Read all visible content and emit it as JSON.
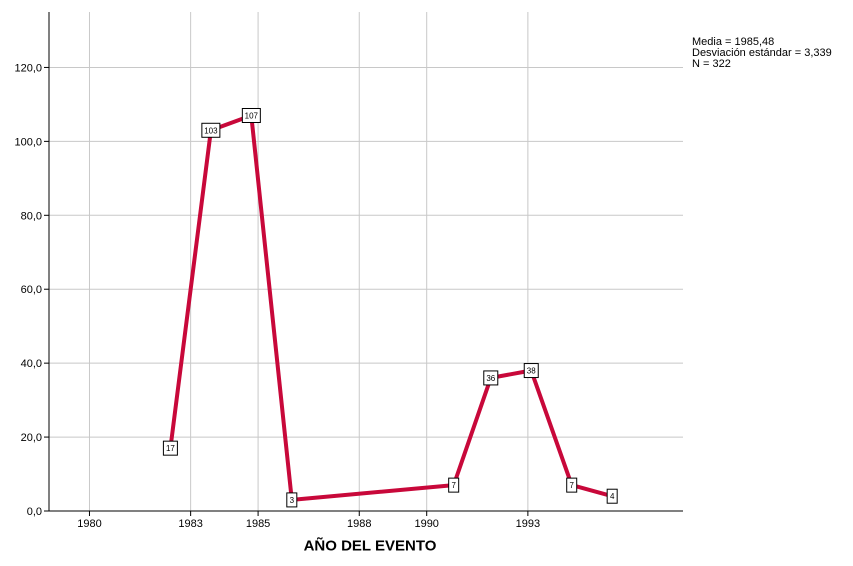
{
  "stats": {
    "mean": "Media = 1985,48",
    "std": "Desviación estándar = 3,339",
    "n": "N = 322"
  },
  "chart_data": {
    "type": "line",
    "xlabel": "AÑO DEL EVENTO",
    "ylabel": "",
    "xlim": [
      1978.8,
      1997.6
    ],
    "ylim": [
      0,
      135
    ],
    "x_ticks": [
      1980,
      1983,
      1985,
      1988,
      1990,
      1993
    ],
    "y_ticks": [
      "0,0",
      "20,0",
      "40,0",
      "60,0",
      "80,0",
      "100,0",
      "120,0"
    ],
    "grid": true,
    "series": [
      {
        "color": "#c8083a",
        "points": [
          {
            "x": 1982.4,
            "y": 17,
            "label": "17"
          },
          {
            "x": 1983.6,
            "y": 103,
            "label": "103"
          },
          {
            "x": 1984.8,
            "y": 107,
            "label": "107"
          },
          {
            "x": 1986.0,
            "y": 3,
            "label": "3"
          },
          {
            "x": 1990.8,
            "y": 7,
            "label": "7"
          },
          {
            "x": 1991.9,
            "y": 36,
            "label": "36"
          },
          {
            "x": 1993.1,
            "y": 38,
            "label": "38"
          },
          {
            "x": 1994.3,
            "y": 7,
            "label": "7"
          },
          {
            "x": 1995.5,
            "y": 4,
            "label": "4"
          }
        ]
      }
    ]
  }
}
